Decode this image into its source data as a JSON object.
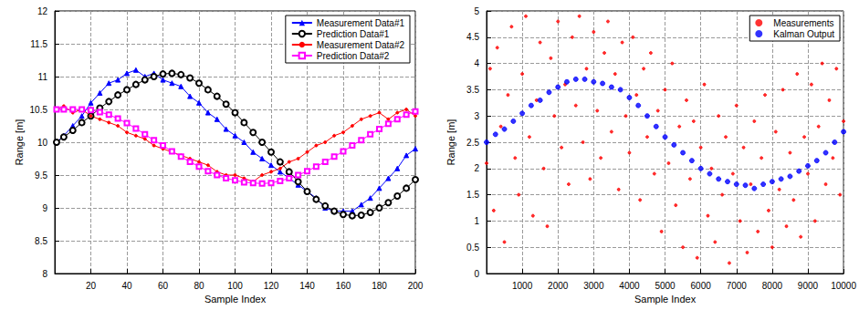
{
  "chart_data": [
    {
      "type": "line",
      "x_label": "Sample Index",
      "y_label": "Range [m]",
      "x": [
        1,
        5,
        10,
        15,
        20,
        25,
        30,
        35,
        40,
        45,
        50,
        55,
        60,
        65,
        70,
        75,
        80,
        85,
        90,
        95,
        100,
        105,
        110,
        115,
        120,
        125,
        130,
        135,
        140,
        145,
        150,
        155,
        160,
        165,
        170,
        175,
        180,
        185,
        190,
        195,
        200
      ],
      "series": [
        {
          "name": "Measurement Data#1",
          "color": "#0000ff",
          "marker": "triangle",
          "line_style": "solid",
          "values": [
            10.0,
            10.1,
            10.25,
            10.4,
            10.6,
            10.75,
            10.9,
            10.95,
            11.05,
            11.1,
            11.0,
            11.05,
            10.95,
            10.9,
            10.85,
            10.7,
            10.6,
            10.45,
            10.35,
            10.2,
            10.1,
            10.0,
            9.85,
            9.75,
            9.65,
            9.55,
            9.45,
            9.35,
            9.25,
            9.15,
            9.0,
            8.95,
            8.95,
            8.95,
            9.05,
            9.15,
            9.3,
            9.45,
            9.6,
            9.8,
            9.9
          ]
        },
        {
          "name": "Prediction Data#1",
          "color": "#000000",
          "marker": "circle",
          "line_style": "solid",
          "values": [
            10.0,
            10.08,
            10.18,
            10.3,
            10.4,
            10.52,
            10.62,
            10.72,
            10.8,
            10.88,
            10.95,
            11.0,
            11.04,
            11.05,
            11.03,
            10.98,
            10.9,
            10.8,
            10.7,
            10.58,
            10.45,
            10.3,
            10.15,
            10.0,
            9.85,
            9.7,
            9.55,
            9.4,
            9.25,
            9.13,
            9.03,
            8.95,
            8.9,
            8.88,
            8.89,
            8.93,
            9.0,
            9.08,
            9.18,
            9.3,
            9.43
          ]
        },
        {
          "name": "Measurement Data#2",
          "color": "#ff0000",
          "marker": "point",
          "line_style": "solid",
          "values": [
            10.5,
            10.55,
            10.45,
            10.5,
            10.4,
            10.35,
            10.3,
            10.25,
            10.15,
            10.1,
            10.05,
            9.95,
            9.9,
            9.85,
            9.8,
            9.75,
            9.7,
            9.65,
            9.55,
            9.5,
            9.5,
            9.45,
            9.4,
            9.5,
            9.55,
            9.6,
            9.7,
            9.75,
            9.85,
            9.95,
            10.0,
            10.1,
            10.15,
            10.25,
            10.35,
            10.4,
            10.45,
            10.35,
            10.45,
            10.5,
            10.4
          ]
        },
        {
          "name": "Prediction Data#2",
          "color": "#ff00ff",
          "marker": "square",
          "line_style": "solid",
          "values": [
            10.5,
            10.5,
            10.5,
            10.5,
            10.49,
            10.46,
            10.42,
            10.36,
            10.29,
            10.21,
            10.12,
            10.03,
            9.95,
            9.86,
            9.78,
            9.7,
            9.63,
            9.56,
            9.5,
            9.45,
            9.42,
            9.39,
            9.38,
            9.37,
            9.38,
            9.41,
            9.45,
            9.5,
            9.56,
            9.63,
            9.7,
            9.78,
            9.86,
            9.95,
            10.03,
            10.12,
            10.2,
            10.28,
            10.35,
            10.42,
            10.47
          ]
        }
      ],
      "xlim": [
        0,
        200
      ],
      "ylim": [
        8,
        12
      ],
      "xticks": [
        20,
        40,
        60,
        80,
        100,
        120,
        140,
        160,
        180,
        200
      ],
      "yticks": [
        8,
        8.5,
        9,
        9.5,
        10,
        10.5,
        11,
        11.5,
        12
      ],
      "grid": true,
      "legend": "upper right"
    },
    {
      "type": "scatter",
      "x_label": "Sample Index",
      "y_label": "Range [m]",
      "series": [
        {
          "name": "Measurements",
          "color": "#ff0000",
          "marker": "point",
          "line_style": "none",
          "x": [
            0,
            100,
            200,
            300,
            400,
            500,
            600,
            700,
            800,
            900,
            1000,
            1100,
            1200,
            1300,
            1400,
            1500,
            1600,
            1700,
            1800,
            1900,
            2000,
            2100,
            2200,
            2300,
            2400,
            2500,
            2600,
            2700,
            2800,
            2900,
            3000,
            3100,
            3200,
            3300,
            3400,
            3500,
            3600,
            3700,
            3800,
            3900,
            4000,
            4100,
            4200,
            4300,
            4400,
            4500,
            4600,
            4700,
            4800,
            4900,
            5000,
            5100,
            5200,
            5300,
            5400,
            5500,
            5600,
            5700,
            5800,
            5900,
            6000,
            6100,
            6200,
            6300,
            6400,
            6500,
            6600,
            6700,
            6800,
            6900,
            7000,
            7100,
            7200,
            7300,
            7400,
            7500,
            7600,
            7700,
            7800,
            7900,
            8000,
            8100,
            8200,
            8300,
            8400,
            8500,
            8600,
            8700,
            8800,
            8900,
            9000,
            9100,
            9200,
            9300,
            9400,
            9500,
            9600,
            9700,
            9800,
            9900,
            10000
          ],
          "values": [
            2.1,
            3.9,
            1.2,
            4.3,
            2.8,
            0.6,
            3.4,
            4.7,
            2.2,
            1.5,
            3.8,
            4.9,
            2.6,
            1.1,
            3.3,
            4.4,
            2.0,
            0.9,
            4.1,
            3.0,
            4.8,
            2.4,
            3.6,
            1.7,
            4.5,
            3.2,
            4.9,
            2.5,
            3.9,
            1.8,
            4.6,
            3.1,
            2.2,
            4.2,
            4.8,
            2.7,
            3.8,
            1.6,
            4.4,
            3.0,
            2.3,
            4.5,
            3.4,
            1.4,
            3.9,
            2.6,
            4.2,
            1.9,
            3.1,
            0.8,
            3.5,
            2.1,
            4.0,
            1.3,
            2.8,
            0.5,
            3.3,
            1.8,
            2.9,
            0.3,
            2.4,
            3.6,
            1.1,
            2.0,
            0.6,
            3.0,
            1.5,
            2.6,
            0.2,
            1.9,
            3.2,
            1.0,
            2.4,
            0.4,
            1.7,
            2.9,
            0.8,
            2.2,
            3.4,
            1.2,
            0.5,
            2.7,
            1.6,
            3.5,
            0.9,
            2.3,
            1.4,
            3.8,
            0.7,
            2.6,
            1.9,
            3.6,
            1.0,
            2.8,
            4.0,
            1.7,
            3.3,
            2.2,
            3.9,
            1.5,
            2.9
          ]
        },
        {
          "name": "Kalman Output",
          "color": "#0000ff",
          "marker": "dot",
          "line_style": "none",
          "x": [
            0,
            250,
            500,
            750,
            1000,
            1250,
            1500,
            1750,
            2000,
            2250,
            2500,
            2750,
            3000,
            3250,
            3500,
            3750,
            4000,
            4250,
            4500,
            4750,
            5000,
            5250,
            5500,
            5750,
            6000,
            6250,
            6500,
            6750,
            7000,
            7250,
            7500,
            7750,
            8000,
            8250,
            8500,
            8750,
            9000,
            9250,
            9500,
            9750,
            10000
          ],
          "values": [
            2.5,
            2.65,
            2.75,
            2.9,
            3.05,
            3.2,
            3.3,
            3.45,
            3.55,
            3.65,
            3.7,
            3.7,
            3.65,
            3.62,
            3.55,
            3.5,
            3.35,
            3.2,
            3.0,
            2.8,
            2.6,
            2.45,
            2.3,
            2.15,
            2.0,
            1.9,
            1.8,
            1.75,
            1.7,
            1.68,
            1.62,
            1.7,
            1.75,
            1.8,
            1.85,
            1.95,
            2.05,
            2.15,
            2.3,
            2.5,
            2.7
          ]
        }
      ],
      "xlim": [
        0,
        10000
      ],
      "ylim": [
        0,
        5
      ],
      "xticks": [
        1000,
        2000,
        3000,
        4000,
        5000,
        6000,
        7000,
        8000,
        9000,
        10000
      ],
      "yticks": [
        0,
        0.5,
        1,
        1.5,
        2,
        2.5,
        3,
        3.5,
        4,
        4.5,
        5
      ],
      "grid": true,
      "legend": "upper right"
    }
  ]
}
